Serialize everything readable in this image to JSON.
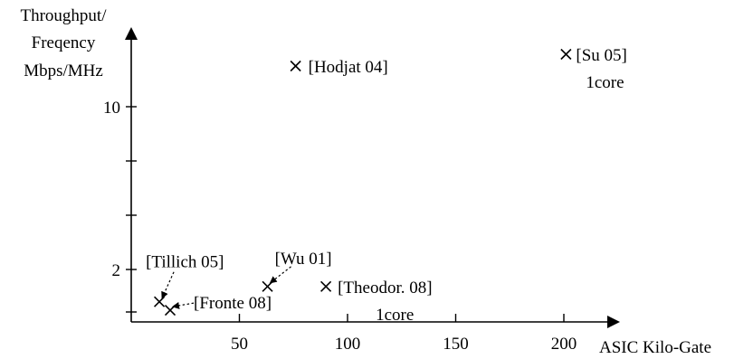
{
  "chart_data": {
    "type": "scatter",
    "title": "",
    "xlabel": "ASIC Kilo-Gate",
    "ylabel_lines": [
      "Throughput/",
      "Freqency",
      "Mbps/MHz"
    ],
    "xlim": [
      0,
      225
    ],
    "x_ticks": [
      {
        "value": 50,
        "label": "50"
      },
      {
        "value": 100,
        "label": "100"
      },
      {
        "value": 150,
        "label": "150"
      },
      {
        "value": 200,
        "label": "200"
      }
    ],
    "y_ticks": [
      {
        "value": 1.5,
        "label": ""
      },
      {
        "value": 2,
        "label": "2"
      },
      {
        "value": 4,
        "label": ""
      },
      {
        "value": 6,
        "label": ""
      },
      {
        "value": 10,
        "label": "10"
      }
    ],
    "grid": false,
    "points": [
      {
        "name": "[Hodjat 04]",
        "x": 76,
        "y": 12.5
      },
      {
        "name": "[Su 05]",
        "sub": "1core",
        "x": 201,
        "y": 13.5
      },
      {
        "name": "[Wu 01]",
        "x": 63,
        "y": 1.8
      },
      {
        "name": "[Theodor. 08]",
        "sub": "1core",
        "x": 90,
        "y": 1.8
      },
      {
        "name": "[Tillich 05]",
        "x": 13,
        "y": 1.62
      },
      {
        "name": "[Fronte 08]",
        "x": 18,
        "y": 1.52
      }
    ]
  }
}
